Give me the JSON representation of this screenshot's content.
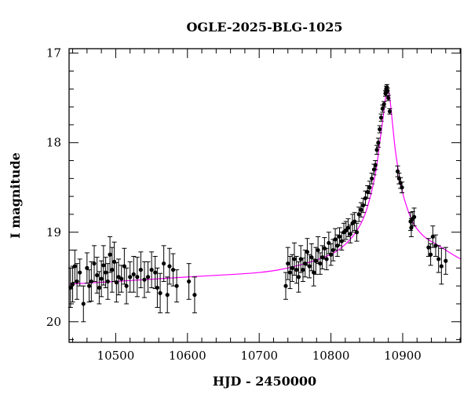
{
  "chart_data": {
    "type": "scatter",
    "title": "OGLE-2025-BLG-1025",
    "xlabel": "HJD - 2450000",
    "ylabel": "I magnitude",
    "xlim": [
      10435,
      10981
    ],
    "ylim": [
      20.23,
      16.95
    ],
    "y_inverted": true,
    "xticks": [
      10500,
      10600,
      10700,
      10800,
      10900
    ],
    "yticks": [
      17,
      18,
      19,
      20
    ],
    "grid": false,
    "colors": {
      "points": "#000000",
      "model": "#ff00ff"
    },
    "points_format": [
      "HJD",
      "I",
      "err"
    ],
    "points": [
      [
        10437,
        19.62,
        0.22
      ],
      [
        10440,
        19.58,
        0.2
      ],
      [
        10443,
        19.38,
        0.18
      ],
      [
        10446,
        19.55,
        0.2
      ],
      [
        10450,
        19.45,
        0.15
      ],
      [
        10455,
        19.8,
        0.2
      ],
      [
        10460,
        19.4,
        0.17
      ],
      [
        10463,
        19.6,
        0.18
      ],
      [
        10466,
        19.55,
        0.22
      ],
      [
        10470,
        19.35,
        0.2
      ],
      [
        10474,
        19.48,
        0.2
      ],
      [
        10477,
        19.62,
        0.18
      ],
      [
        10480,
        19.52,
        0.2
      ],
      [
        10483,
        19.37,
        0.22
      ],
      [
        10486,
        19.45,
        0.17
      ],
      [
        10489,
        19.55,
        0.2
      ],
      [
        10492,
        19.25,
        0.2
      ],
      [
        10495,
        19.42,
        0.25
      ],
      [
        10498,
        19.33,
        0.22
      ],
      [
        10501,
        19.56,
        0.22
      ],
      [
        10504,
        19.5,
        0.2
      ],
      [
        10508,
        19.52,
        0.15
      ],
      [
        10512,
        19.38,
        0.2
      ],
      [
        10515,
        19.6,
        0.2
      ],
      [
        10520,
        19.5,
        0.17
      ],
      [
        10525,
        19.47,
        0.2
      ],
      [
        10530,
        19.5,
        0.22
      ],
      [
        10535,
        19.42,
        0.2
      ],
      [
        10540,
        19.53,
        0.2
      ],
      [
        10545,
        19.5,
        0.17
      ],
      [
        10550,
        19.42,
        0.2
      ],
      [
        10555,
        19.45,
        0.18
      ],
      [
        10558,
        19.62,
        0.22
      ],
      [
        10562,
        19.68,
        0.22
      ],
      [
        10567,
        19.35,
        0.2
      ],
      [
        10572,
        19.7,
        0.2
      ],
      [
        10575,
        19.38,
        0.2
      ],
      [
        10580,
        19.42,
        0.18
      ],
      [
        10585,
        19.6,
        0.18
      ],
      [
        10602,
        19.55,
        0.2
      ],
      [
        10610,
        19.7,
        0.2
      ],
      [
        10737,
        19.6,
        0.15
      ],
      [
        10740,
        19.35,
        0.18
      ],
      [
        10743,
        19.45,
        0.18
      ],
      [
        10746,
        19.4,
        0.15
      ],
      [
        10749,
        19.3,
        0.18
      ],
      [
        10752,
        19.42,
        0.15
      ],
      [
        10755,
        19.5,
        0.17
      ],
      [
        10758,
        19.3,
        0.15
      ],
      [
        10761,
        19.42,
        0.13
      ],
      [
        10764,
        19.35,
        0.15
      ],
      [
        10767,
        19.22,
        0.15
      ],
      [
        10770,
        19.38,
        0.13
      ],
      [
        10773,
        19.28,
        0.15
      ],
      [
        10776,
        19.45,
        0.15
      ],
      [
        10779,
        19.32,
        0.15
      ],
      [
        10782,
        19.2,
        0.15
      ],
      [
        10785,
        19.35,
        0.12
      ],
      [
        10788,
        19.28,
        0.13
      ],
      [
        10791,
        19.18,
        0.12
      ],
      [
        10794,
        19.3,
        0.12
      ],
      [
        10797,
        19.12,
        0.12
      ],
      [
        10800,
        19.25,
        0.12
      ],
      [
        10803,
        19.2,
        0.12
      ],
      [
        10806,
        19.08,
        0.12
      ],
      [
        10809,
        19.15,
        0.12
      ],
      [
        10812,
        19.05,
        0.1
      ],
      [
        10815,
        19.1,
        0.1
      ],
      [
        10818,
        19.0,
        0.1
      ],
      [
        10821,
        18.98,
        0.1
      ],
      [
        10824,
        18.95,
        0.1
      ],
      [
        10827,
        19.02,
        0.1
      ],
      [
        10830,
        18.9,
        0.1
      ],
      [
        10833,
        18.88,
        0.1
      ],
      [
        10836,
        19.0,
        0.1
      ],
      [
        10839,
        18.8,
        0.08
      ],
      [
        10842,
        18.75,
        0.08
      ],
      [
        10845,
        18.7,
        0.08
      ],
      [
        10848,
        18.62,
        0.08
      ],
      [
        10851,
        18.55,
        0.07
      ],
      [
        10854,
        18.5,
        0.07
      ],
      [
        10857,
        18.4,
        0.06
      ],
      [
        10860,
        18.3,
        0.06
      ],
      [
        10862,
        18.25,
        0.05
      ],
      [
        10864,
        18.08,
        0.05
      ],
      [
        10866,
        18.0,
        0.05
      ],
      [
        10868,
        17.85,
        0.04
      ],
      [
        10870,
        17.72,
        0.04
      ],
      [
        10872,
        17.62,
        0.04
      ],
      [
        10874,
        17.57,
        0.03
      ],
      [
        10876,
        17.45,
        0.03
      ],
      [
        10877,
        17.4,
        0.03
      ],
      [
        10878,
        17.38,
        0.03
      ],
      [
        10879,
        17.42,
        0.03
      ],
      [
        10880,
        17.5,
        0.03
      ],
      [
        10882,
        17.65,
        0.03
      ],
      [
        10893,
        18.32,
        0.06
      ],
      [
        10895,
        18.4,
        0.06
      ],
      [
        10897,
        18.45,
        0.06
      ],
      [
        10899,
        18.5,
        0.06
      ],
      [
        10911,
        18.88,
        0.1
      ],
      [
        10912,
        18.95,
        0.1
      ],
      [
        10914,
        18.85,
        0.08
      ],
      [
        10916,
        18.83,
        0.1
      ],
      [
        10936,
        19.17,
        0.1
      ],
      [
        10939,
        19.25,
        0.12
      ],
      [
        10942,
        19.05,
        0.12
      ],
      [
        10946,
        19.15,
        0.12
      ],
      [
        10950,
        19.3,
        0.15
      ],
      [
        10954,
        19.38,
        0.2
      ],
      [
        10960,
        19.32,
        0.15
      ]
    ],
    "model": [
      [
        10435,
        19.58
      ],
      [
        10500,
        19.55
      ],
      [
        10600,
        19.5
      ],
      [
        10700,
        19.45
      ],
      [
        10750,
        19.38
      ],
      [
        10790,
        19.28
      ],
      [
        10810,
        19.2
      ],
      [
        10830,
        19.05
      ],
      [
        10845,
        18.85
      ],
      [
        10855,
        18.6
      ],
      [
        10863,
        18.3
      ],
      [
        10868,
        18.0
      ],
      [
        10873,
        17.7
      ],
      [
        10877,
        17.45
      ],
      [
        10879,
        17.4
      ],
      [
        10882,
        17.5
      ],
      [
        10886,
        17.8
      ],
      [
        10890,
        18.1
      ],
      [
        10896,
        18.4
      ],
      [
        10903,
        18.65
      ],
      [
        10915,
        18.9
      ],
      [
        10930,
        19.05
      ],
      [
        10950,
        19.15
      ],
      [
        10970,
        19.25
      ],
      [
        10981,
        19.3
      ]
    ]
  }
}
